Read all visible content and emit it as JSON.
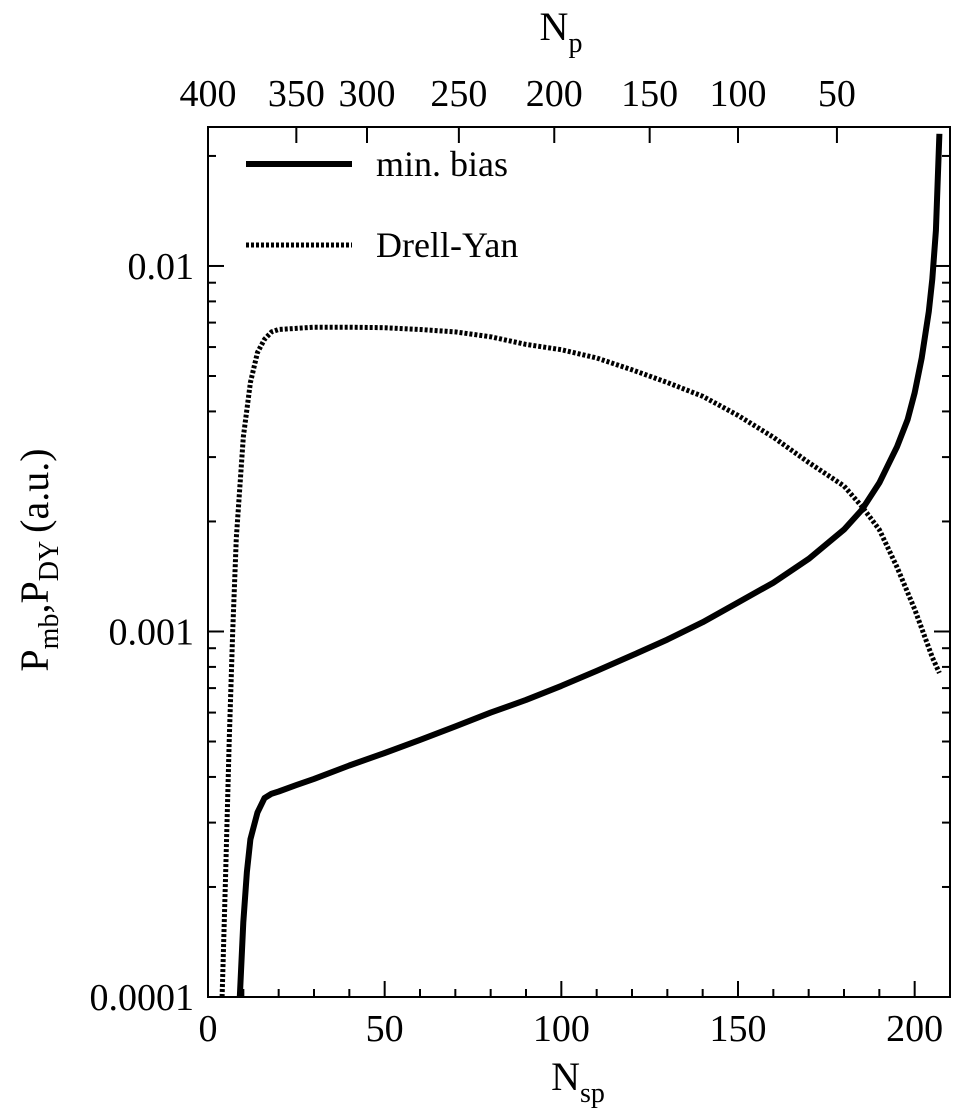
{
  "chart_data": {
    "type": "line",
    "title": "",
    "xlabel": {
      "main": "N",
      "sub": "sp"
    },
    "x2label": {
      "main": "N",
      "sub": "p"
    },
    "ylabel": {
      "p1": "P",
      "s1": "mb",
      "sep": ",",
      "p2": "P",
      "s2": "DY",
      "unit": "(a.u.)"
    },
    "xlim": [
      0,
      210
    ],
    "ylim": [
      0.0001,
      0.024
    ],
    "yscale": "log",
    "grid": false,
    "legend_position": "top-left",
    "x_ticks": [
      0,
      50,
      100,
      150,
      200
    ],
    "x_tick_labels": [
      "0",
      "50",
      "100",
      "150",
      "200"
    ],
    "y_ticks": [
      0.0001,
      0.001,
      0.01
    ],
    "y_tick_labels": [
      "0.0001",
      "0.001",
      "0.01"
    ],
    "top_ticks": [
      {
        "label": "400",
        "x": 0
      },
      {
        "label": "350",
        "x": 25
      },
      {
        "label": "300",
        "x": 45
      },
      {
        "label": "250",
        "x": 71
      },
      {
        "label": "200",
        "x": 98
      },
      {
        "label": "150",
        "x": 125
      },
      {
        "label": "100",
        "x": 150
      },
      {
        "label": "50",
        "x": 178
      }
    ],
    "series": [
      {
        "name": "min. bias",
        "style": "solid",
        "color": "#000000",
        "points": [
          [
            9,
            0.0001
          ],
          [
            10,
            0.00016
          ],
          [
            11,
            0.00022
          ],
          [
            12,
            0.00027
          ],
          [
            14,
            0.00032
          ],
          [
            16,
            0.00035
          ],
          [
            18,
            0.00036
          ],
          [
            20,
            0.000365
          ],
          [
            25,
            0.00038
          ],
          [
            30,
            0.000395
          ],
          [
            40,
            0.00043
          ],
          [
            50,
            0.000465
          ],
          [
            60,
            0.000505
          ],
          [
            70,
            0.00055
          ],
          [
            80,
            0.0006
          ],
          [
            90,
            0.00065
          ],
          [
            100,
            0.00071
          ],
          [
            110,
            0.00078
          ],
          [
            120,
            0.00086
          ],
          [
            130,
            0.00095
          ],
          [
            140,
            0.00106
          ],
          [
            150,
            0.0012
          ],
          [
            160,
            0.00136
          ],
          [
            170,
            0.00158
          ],
          [
            180,
            0.0019
          ],
          [
            185,
            0.00215
          ],
          [
            190,
            0.00255
          ],
          [
            195,
            0.0032
          ],
          [
            198,
            0.0038
          ],
          [
            200,
            0.0045
          ],
          [
            202,
            0.0056
          ],
          [
            204,
            0.0075
          ],
          [
            205,
            0.0092
          ],
          [
            206,
            0.0125
          ],
          [
            207,
            0.023
          ]
        ]
      },
      {
        "name": "Drell-Yan",
        "style": "dotted",
        "color": "#000000",
        "points": [
          [
            4,
            0.0001
          ],
          [
            5,
            0.00022
          ],
          [
            6,
            0.0005
          ],
          [
            7,
            0.001
          ],
          [
            8,
            0.0018
          ],
          [
            10,
            0.0034
          ],
          [
            12,
            0.0048
          ],
          [
            14,
            0.0058
          ],
          [
            16,
            0.0063
          ],
          [
            18,
            0.0066
          ],
          [
            20,
            0.0067
          ],
          [
            30,
            0.0068
          ],
          [
            40,
            0.0068
          ],
          [
            50,
            0.00678
          ],
          [
            60,
            0.0067
          ],
          [
            70,
            0.0066
          ],
          [
            80,
            0.0064
          ],
          [
            90,
            0.0061
          ],
          [
            100,
            0.0059
          ],
          [
            110,
            0.0056
          ],
          [
            120,
            0.0052
          ],
          [
            130,
            0.0048
          ],
          [
            140,
            0.0044
          ],
          [
            150,
            0.0039
          ],
          [
            160,
            0.0034
          ],
          [
            170,
            0.0029
          ],
          [
            180,
            0.0025
          ],
          [
            185,
            0.0022
          ],
          [
            190,
            0.0019
          ],
          [
            195,
            0.0015
          ],
          [
            200,
            0.00115
          ],
          [
            205,
            0.00085
          ],
          [
            207,
            0.00077
          ]
        ]
      }
    ]
  }
}
